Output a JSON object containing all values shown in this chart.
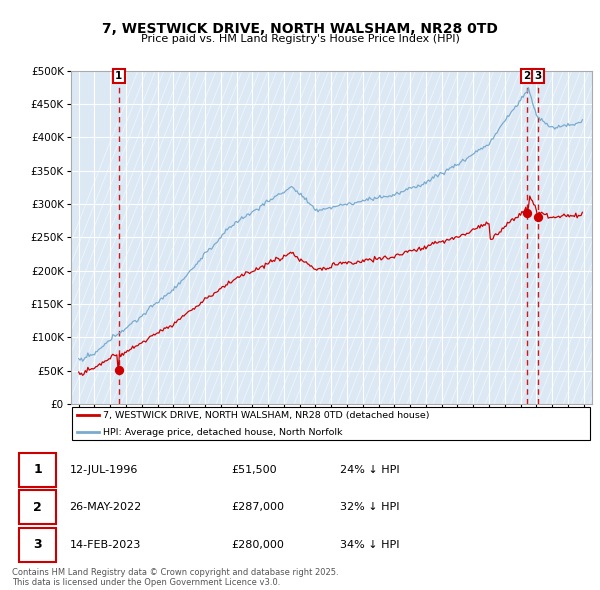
{
  "title": "7, WESTWICK DRIVE, NORTH WALSHAM, NR28 0TD",
  "subtitle": "Price paid vs. HM Land Registry's House Price Index (HPI)",
  "legend_line1": "7, WESTWICK DRIVE, NORTH WALSHAM, NR28 0TD (detached house)",
  "legend_line2": "HPI: Average price, detached house, North Norfolk",
  "sale_labels": [
    "1",
    "2",
    "3"
  ],
  "sale_dates_year": [
    1996.54,
    2022.4,
    2023.12
  ],
  "sale_prices": [
    51500,
    287000,
    280000
  ],
  "sale_info": [
    [
      "1",
      "12-JUL-1996",
      "£51,500",
      "24% ↓ HPI"
    ],
    [
      "2",
      "26-MAY-2022",
      "£287,000",
      "32% ↓ HPI"
    ],
    [
      "3",
      "14-FEB-2023",
      "£280,000",
      "34% ↓ HPI"
    ]
  ],
  "footnote": "Contains HM Land Registry data © Crown copyright and database right 2025.\nThis data is licensed under the Open Government Licence v3.0.",
  "ylim": [
    0,
    500000
  ],
  "xlim_start": 1993.5,
  "xlim_end": 2026.5,
  "red_color": "#cc0000",
  "blue_color": "#7aabcf",
  "bg_color": "#dce9f5",
  "grid_color": "#ffffff",
  "border_color": "#aaaaaa"
}
